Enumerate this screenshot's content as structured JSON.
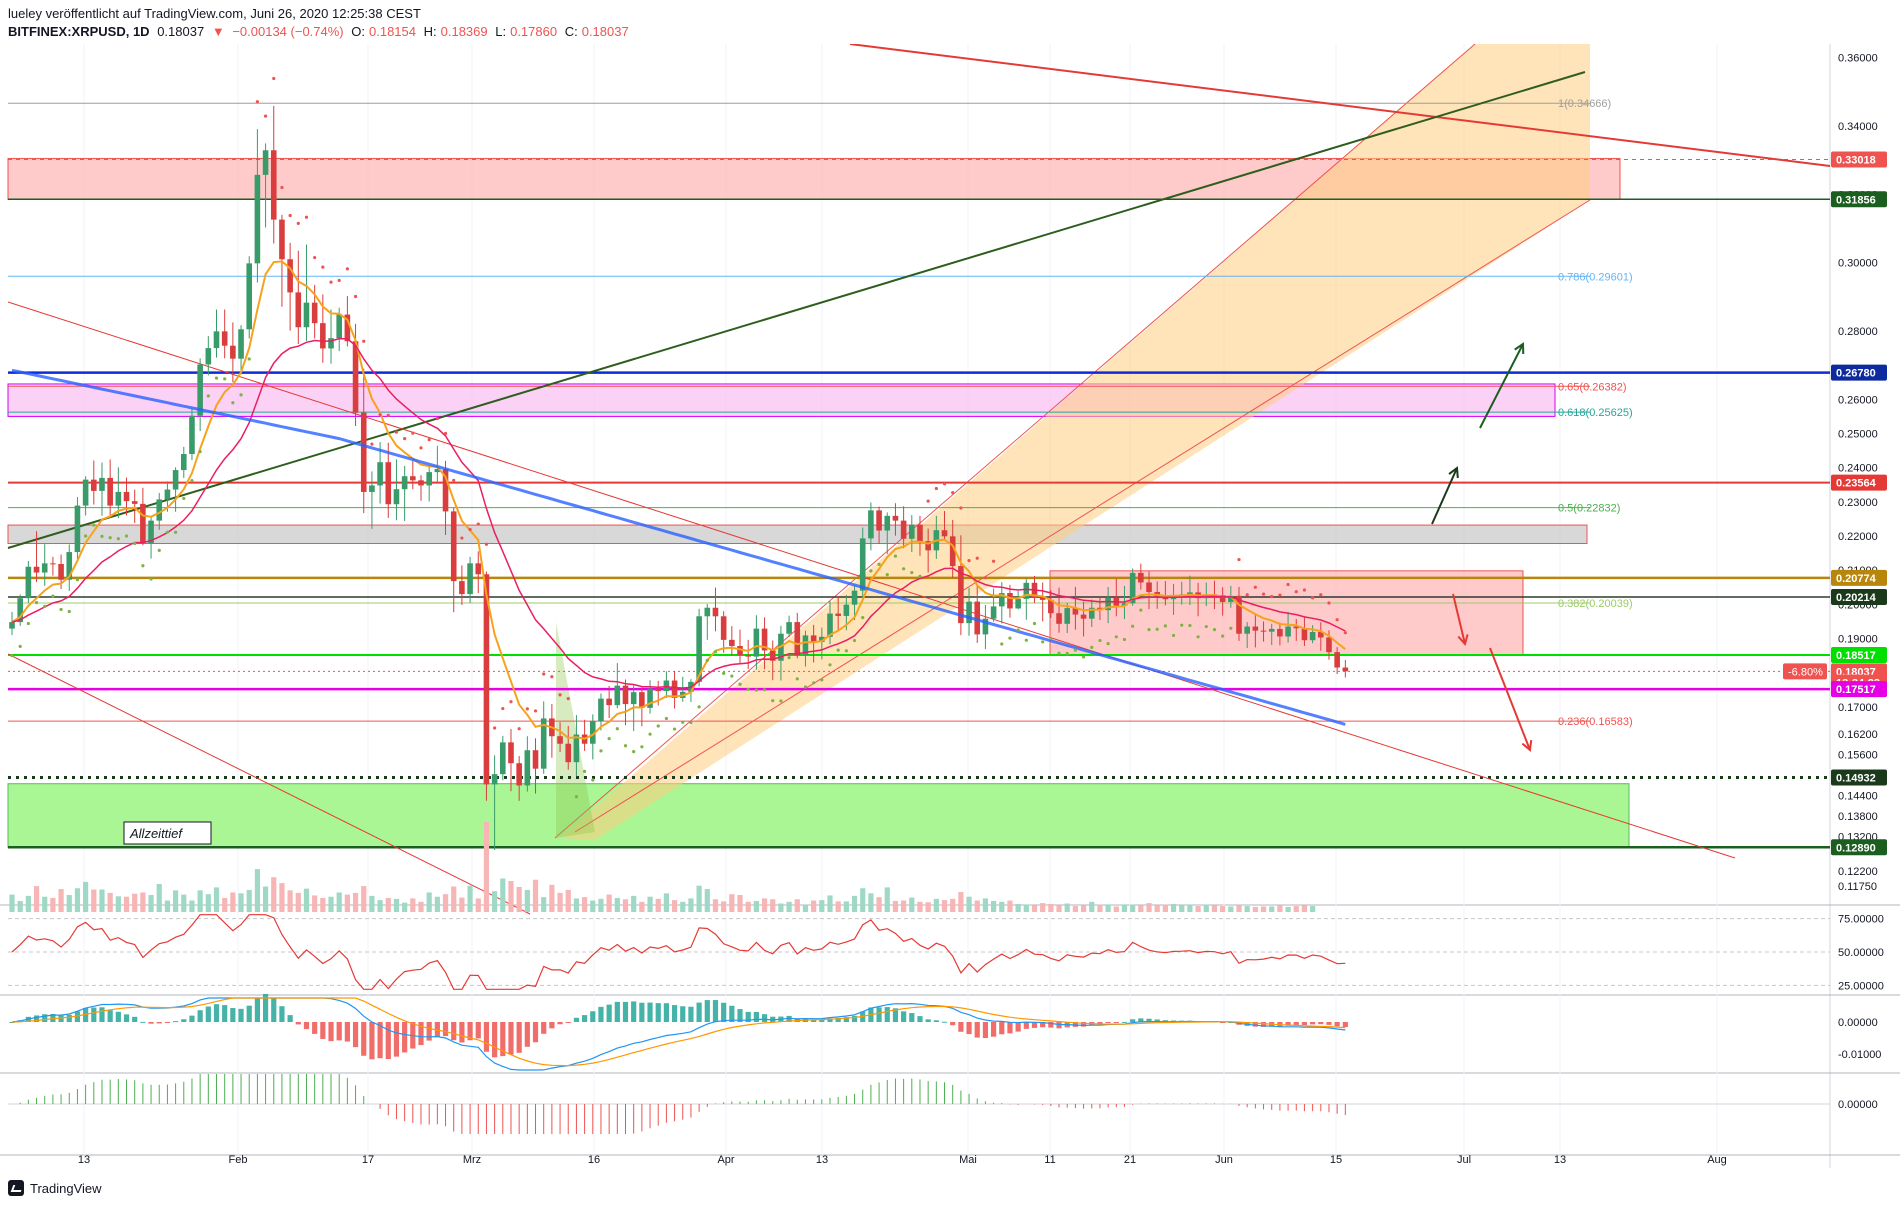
{
  "header": {
    "publisher": "lueley veröffentlicht auf TradingView.com, Juni 26, 2020 12:25:38 CEST",
    "symbol": "BITFINEX:XRPUSD, 1D",
    "last": "0.18037",
    "change": "−0.00134 (−0.74%)",
    "o_label": "O:",
    "o": "0.18154",
    "h_label": "H:",
    "h": "0.18369",
    "l_label": "L:",
    "l": "0.17860",
    "c_label": "C:",
    "c": "0.18037"
  },
  "footer": {
    "brand": "TradingView"
  },
  "colors": {
    "up": "#26a69a",
    "down": "#ef5350",
    "ma200": "#2962ff",
    "ema_fast": "#f7a21b",
    "ema_slow": "#e91e63",
    "channel_fill": "#ffcc80",
    "green_zone": "#a5f58f",
    "red_zone": "#ff9e9e",
    "pink_zone": "#f8b4f0",
    "gray_zone": "#c8c8c8"
  },
  "chart_data": {
    "type": "line",
    "title": "BITFINEX:XRPUSD, 1D",
    "ylim": [
      0.112,
      0.364
    ],
    "x_ticks": [
      "13",
      "Feb",
      "17",
      "Mrz",
      "16",
      "Apr",
      "13",
      "Mai",
      "11",
      "21",
      "Jun",
      "15",
      "Jul",
      "13",
      "Aug"
    ],
    "y_ticks": [
      "0.36000",
      "0.34000",
      "0.32000",
      "0.30000",
      "0.28000",
      "0.26000",
      "0.25000",
      "0.24000",
      "0.23000",
      "0.22000",
      "0.21000",
      "0.20000",
      "0.19000",
      "0.18000",
      "0.17000",
      "0.16200",
      "0.15600",
      "0.14400",
      "0.13800",
      "0.13200",
      "0.12800",
      "0.12200",
      "0.11750"
    ],
    "price_tags": [
      {
        "text": "0.33018",
        "value": 0.33018,
        "color": "#ef5350"
      },
      {
        "text": "0.31856",
        "value": 0.31856,
        "color": "#1b5e20"
      },
      {
        "text": "0.26780",
        "value": 0.2678,
        "color": "#0d2b9e"
      },
      {
        "text": "0.23564",
        "value": 0.23564,
        "color": "#e53935"
      },
      {
        "text": "0.20774",
        "value": 0.20774,
        "color": "#b8860b"
      },
      {
        "text": "0.20214",
        "value": 0.20214,
        "color": "#1b3a1b"
      },
      {
        "text": "0.18517",
        "value": 0.18517,
        "color": "#00e000"
      },
      {
        "text": "0.18037",
        "value": 0.18037,
        "color": "#ef5350"
      },
      {
        "text": "13:34:23",
        "value": 0.1771,
        "color": "#ef5350"
      },
      {
        "text": "0.17517",
        "value": 0.17517,
        "color": "#e600e6"
      },
      {
        "text": "0.14932",
        "value": 0.14932,
        "color": "#1b3a1b"
      },
      {
        "text": "0.12890",
        "value": 0.1289,
        "color": "#1b5e20"
      }
    ],
    "change_tag": "-6.80%",
    "fib_levels": [
      {
        "label": "1(0.34666)",
        "value": 0.34666,
        "color": "#9e9e9e"
      },
      {
        "label": "0.786(0.29601)",
        "value": 0.29601,
        "color": "#64b5f6"
      },
      {
        "label": "0.65(0.26382)",
        "value": 0.26382,
        "color": "#ef5350"
      },
      {
        "label": "0.618(0.25625)",
        "value": 0.25625,
        "color": "#26a69a"
      },
      {
        "label": "0.5(0.22832)",
        "value": 0.22832,
        "color": "#4caf50"
      },
      {
        "label": "0.382(0.20039)",
        "value": 0.20039,
        "color": "#9ccc65"
      },
      {
        "label": "0.236(0.16583)",
        "value": 0.16583,
        "color": "#ef5350"
      }
    ],
    "annotation": "Allzeittief",
    "candles": [
      [
        0.1929,
        0.1978,
        0.191,
        0.1948
      ],
      [
        0.1948,
        0.2029,
        0.1937,
        0.2018
      ],
      [
        0.2018,
        0.2127,
        0.2004,
        0.211
      ],
      [
        0.211,
        0.2214,
        0.2065,
        0.2093
      ],
      [
        0.2093,
        0.2176,
        0.2054,
        0.212
      ],
      [
        0.212,
        0.2139,
        0.2084,
        0.2118
      ],
      [
        0.2118,
        0.2146,
        0.2045,
        0.2072
      ],
      [
        0.2072,
        0.2175,
        0.2039,
        0.2153
      ],
      [
        0.2153,
        0.2314,
        0.2132,
        0.2289
      ],
      [
        0.2289,
        0.2375,
        0.226,
        0.2365
      ],
      [
        0.2365,
        0.2421,
        0.2292,
        0.2332
      ],
      [
        0.2332,
        0.2415,
        0.2259,
        0.237
      ],
      [
        0.237,
        0.2424,
        0.2255,
        0.2289
      ],
      [
        0.2289,
        0.2401,
        0.2252,
        0.2329
      ],
      [
        0.2329,
        0.2371,
        0.226,
        0.2302
      ],
      [
        0.2302,
        0.2336,
        0.2238,
        0.2294
      ],
      [
        0.2294,
        0.2341,
        0.2173,
        0.2179
      ],
      [
        0.2179,
        0.2256,
        0.2134,
        0.2245
      ],
      [
        0.2245,
        0.2326,
        0.2218,
        0.2307
      ],
      [
        0.2307,
        0.236,
        0.2271,
        0.2336
      ],
      [
        0.2336,
        0.2401,
        0.2271,
        0.2393
      ],
      [
        0.2393,
        0.2461,
        0.237,
        0.244
      ],
      [
        0.244,
        0.2574,
        0.2422,
        0.2552
      ],
      [
        0.2552,
        0.272,
        0.2507,
        0.2702
      ],
      [
        0.2702,
        0.2785,
        0.267,
        0.275
      ],
      [
        0.275,
        0.2863,
        0.2722,
        0.2799
      ],
      [
        0.2799,
        0.2863,
        0.272,
        0.2757
      ],
      [
        0.2757,
        0.2825,
        0.265,
        0.2719
      ],
      [
        0.2719,
        0.2817,
        0.2673,
        0.2805
      ],
      [
        0.2805,
        0.3019,
        0.2778,
        0.2998
      ],
      [
        0.2998,
        0.3391,
        0.2942,
        0.3257
      ],
      [
        0.3257,
        0.3349,
        0.3103,
        0.3329
      ],
      [
        0.3329,
        0.3459,
        0.3056,
        0.3126
      ],
      [
        0.3126,
        0.314,
        0.2871,
        0.301
      ],
      [
        0.301,
        0.3058,
        0.2801,
        0.2913
      ],
      [
        0.2913,
        0.3035,
        0.2762,
        0.2811
      ],
      [
        0.2811,
        0.3053,
        0.2771,
        0.2883
      ],
      [
        0.2883,
        0.2935,
        0.2778,
        0.2823
      ],
      [
        0.2823,
        0.2907,
        0.2707,
        0.2749
      ],
      [
        0.2749,
        0.2863,
        0.2704,
        0.2779
      ],
      [
        0.2779,
        0.2868,
        0.2741,
        0.2848
      ],
      [
        0.2848,
        0.2902,
        0.2755,
        0.277
      ],
      [
        0.277,
        0.2821,
        0.2522,
        0.2561
      ],
      [
        0.2561,
        0.269,
        0.2267,
        0.2329
      ],
      [
        0.2329,
        0.2389,
        0.2221,
        0.2348
      ],
      [
        0.2348,
        0.2475,
        0.2295,
        0.2416
      ],
      [
        0.2416,
        0.2473,
        0.2253,
        0.2293
      ],
      [
        0.2293,
        0.2424,
        0.2246,
        0.2337
      ],
      [
        0.2337,
        0.2405,
        0.2244,
        0.2375
      ],
      [
        0.2375,
        0.2421,
        0.2337,
        0.2363
      ],
      [
        0.2363,
        0.2378,
        0.2303,
        0.2348
      ],
      [
        0.2348,
        0.2402,
        0.2301,
        0.2387
      ],
      [
        0.2387,
        0.2464,
        0.2353,
        0.2396
      ],
      [
        0.2396,
        0.242,
        0.2203,
        0.2272
      ],
      [
        0.2272,
        0.2283,
        0.1977,
        0.2068
      ],
      [
        0.2068,
        0.2114,
        0.1998,
        0.203
      ],
      [
        0.203,
        0.2139,
        0.2004,
        0.212
      ],
      [
        0.212,
        0.2155,
        0.2033,
        0.2088
      ],
      [
        0.2088,
        0.2096,
        0.1425,
        0.1473
      ],
      [
        0.1473,
        0.1558,
        0.1281,
        0.1503
      ],
      [
        0.1503,
        0.1615,
        0.1485,
        0.1596
      ],
      [
        0.1596,
        0.1635,
        0.1453,
        0.1535
      ],
      [
        0.1535,
        0.1556,
        0.1425,
        0.147
      ],
      [
        0.147,
        0.1614,
        0.1452,
        0.1573
      ],
      [
        0.1573,
        0.1608,
        0.1446,
        0.1519
      ],
      [
        0.1519,
        0.1716,
        0.1504,
        0.1666
      ],
      [
        0.1666,
        0.1708,
        0.1551,
        0.1614
      ],
      [
        0.1614,
        0.1655,
        0.1568,
        0.1592
      ],
      [
        0.1592,
        0.1644,
        0.1516,
        0.1538
      ],
      [
        0.1538,
        0.1676,
        0.1497,
        0.1619
      ],
      [
        0.1619,
        0.1662,
        0.1571,
        0.1592
      ],
      [
        0.1592,
        0.1678,
        0.1546,
        0.1658
      ],
      [
        0.1658,
        0.1739,
        0.1631,
        0.1724
      ],
      [
        0.1724,
        0.1761,
        0.1667,
        0.1705
      ],
      [
        0.1705,
        0.1828,
        0.1696,
        0.1762
      ],
      [
        0.1762,
        0.178,
        0.1646,
        0.1708
      ],
      [
        0.1708,
        0.1764,
        0.1629,
        0.1743
      ],
      [
        0.1743,
        0.1756,
        0.1643,
        0.1697
      ],
      [
        0.1697,
        0.1778,
        0.168,
        0.1753
      ],
      [
        0.1753,
        0.1776,
        0.1704,
        0.1746
      ],
      [
        0.1746,
        0.1804,
        0.1726,
        0.1777
      ],
      [
        0.1777,
        0.1804,
        0.1695,
        0.1726
      ],
      [
        0.1726,
        0.1788,
        0.1715,
        0.1744
      ],
      [
        0.1744,
        0.1781,
        0.1714,
        0.1773
      ],
      [
        0.1773,
        0.1987,
        0.176,
        0.1965
      ],
      [
        0.1965,
        0.2001,
        0.1896,
        0.199
      ],
      [
        0.199,
        0.2049,
        0.1921,
        0.1965
      ],
      [
        0.1965,
        0.198,
        0.1858,
        0.1896
      ],
      [
        0.1896,
        0.1936,
        0.185,
        0.1878
      ],
      [
        0.1878,
        0.1926,
        0.1826,
        0.1851
      ],
      [
        0.1851,
        0.1896,
        0.1811,
        0.1847
      ],
      [
        0.1847,
        0.1968,
        0.1809,
        0.1929
      ],
      [
        0.1929,
        0.1962,
        0.181,
        0.1865
      ],
      [
        0.1865,
        0.1894,
        0.1778,
        0.1835
      ],
      [
        0.1835,
        0.1937,
        0.1777,
        0.1914
      ],
      [
        0.1914,
        0.1967,
        0.1904,
        0.1948
      ],
      [
        0.1948,
        0.1975,
        0.1842,
        0.1851
      ],
      [
        0.1851,
        0.1923,
        0.1818,
        0.1909
      ],
      [
        0.1909,
        0.194,
        0.183,
        0.189
      ],
      [
        0.189,
        0.1932,
        0.1839,
        0.1905
      ],
      [
        0.1905,
        0.2009,
        0.1883,
        0.1973
      ],
      [
        0.1973,
        0.2024,
        0.1926,
        0.1966
      ],
      [
        0.1966,
        0.2027,
        0.1924,
        0.1999
      ],
      [
        0.1999,
        0.2056,
        0.1954,
        0.204
      ],
      [
        0.204,
        0.2225,
        0.2021,
        0.2193
      ],
      [
        0.2193,
        0.2298,
        0.2158,
        0.2275
      ],
      [
        0.2275,
        0.2286,
        0.2177,
        0.2216
      ],
      [
        0.2216,
        0.2269,
        0.2147,
        0.2259
      ],
      [
        0.2259,
        0.2296,
        0.2201,
        0.2245
      ],
      [
        0.2245,
        0.2287,
        0.2164,
        0.2192
      ],
      [
        0.2192,
        0.2261,
        0.2153,
        0.2233
      ],
      [
        0.2233,
        0.2259,
        0.2142,
        0.2185
      ],
      [
        0.2185,
        0.2222,
        0.2093,
        0.2158
      ],
      [
        0.2158,
        0.2259,
        0.2133,
        0.2217
      ],
      [
        0.2217,
        0.2273,
        0.2186,
        0.2199
      ],
      [
        0.2199,
        0.2247,
        0.2077,
        0.2112
      ],
      [
        0.2112,
        0.2202,
        0.191,
        0.1945
      ],
      [
        0.1945,
        0.2048,
        0.1908,
        0.2008
      ],
      [
        0.2008,
        0.2055,
        0.1887,
        0.1912
      ],
      [
        0.1912,
        0.1998,
        0.1869,
        0.1958
      ],
      [
        0.1958,
        0.2046,
        0.1949,
        0.1994
      ],
      [
        0.1994,
        0.2065,
        0.1944,
        0.2033
      ],
      [
        0.2033,
        0.2057,
        0.1961,
        0.1988
      ],
      [
        0.1988,
        0.2039,
        0.1985,
        0.2016
      ],
      [
        0.2016,
        0.2074,
        0.1955,
        0.2063
      ],
      [
        0.2063,
        0.2083,
        0.2004,
        0.2021
      ],
      [
        0.2021,
        0.2064,
        0.195,
        0.2013
      ],
      [
        0.2013,
        0.2041,
        0.196,
        0.1974
      ],
      [
        0.1974,
        0.2049,
        0.1917,
        0.1943
      ],
      [
        0.1943,
        0.2005,
        0.1916,
        0.1989
      ],
      [
        0.1989,
        0.2051,
        0.1926,
        0.197
      ],
      [
        0.197,
        0.2008,
        0.1906,
        0.1958
      ],
      [
        0.1958,
        0.2014,
        0.1934,
        0.199
      ],
      [
        0.199,
        0.2021,
        0.1954,
        0.1983
      ],
      [
        0.1983,
        0.2051,
        0.1945,
        0.2019
      ],
      [
        0.2019,
        0.2075,
        0.1965,
        0.1996
      ],
      [
        0.1996,
        0.2054,
        0.1957,
        0.2003
      ],
      [
        0.2003,
        0.2105,
        0.1996,
        0.2092
      ],
      [
        0.2092,
        0.2119,
        0.2043,
        0.2064
      ],
      [
        0.2064,
        0.2096,
        0.1986,
        0.2036
      ],
      [
        0.2036,
        0.2067,
        0.1987,
        0.2022
      ],
      [
        0.2022,
        0.2068,
        0.1997,
        0.2015
      ],
      [
        0.2015,
        0.206,
        0.1969,
        0.2026
      ],
      [
        0.2026,
        0.2066,
        0.1999,
        0.2029
      ],
      [
        0.2029,
        0.2084,
        0.1998,
        0.2035
      ],
      [
        0.2035,
        0.2063,
        0.1965,
        0.2018
      ],
      [
        0.2018,
        0.2064,
        0.1995,
        0.2029
      ],
      [
        0.2029,
        0.2069,
        0.1986,
        0.2027
      ],
      [
        0.2027,
        0.205,
        0.1967,
        0.2007
      ],
      [
        0.2007,
        0.2054,
        0.199,
        0.2025
      ],
      [
        0.2025,
        0.2051,
        0.1893,
        0.1914
      ],
      [
        0.1914,
        0.1948,
        0.1872,
        0.1935
      ],
      [
        0.1935,
        0.197,
        0.1874,
        0.1923
      ],
      [
        0.1923,
        0.195,
        0.1891,
        0.192
      ],
      [
        0.192,
        0.1943,
        0.1881,
        0.1928
      ],
      [
        0.1928,
        0.1947,
        0.188,
        0.1906
      ],
      [
        0.1906,
        0.1978,
        0.1888,
        0.1935
      ],
      [
        0.1935,
        0.1957,
        0.1893,
        0.193
      ],
      [
        0.193,
        0.1962,
        0.1878,
        0.1895
      ],
      [
        0.1895,
        0.1939,
        0.1886,
        0.1919
      ],
      [
        0.1919,
        0.1948,
        0.1864,
        0.1903
      ],
      [
        0.1903,
        0.1924,
        0.1838,
        0.186
      ],
      [
        0.186,
        0.1875,
        0.1796,
        0.1815
      ],
      [
        0.1815,
        0.1837,
        0.1786,
        0.1804
      ]
    ],
    "volume": [
      4.1,
      2.6,
      3.8,
      6.1,
      3.6,
      3.3,
      5.4,
      4.0,
      5.6,
      7.1,
      5.3,
      5.3,
      4.5,
      3.7,
      3.6,
      4.3,
      4.6,
      4.0,
      6.6,
      2.7,
      5.1,
      4.1,
      2.7,
      5.1,
      4.2,
      5.8,
      3.3,
      4.6,
      4.4,
      5.2,
      10.1,
      6.0,
      8.2,
      6.8,
      5.1,
      4.5,
      5.5,
      3.9,
      3.3,
      3.6,
      4.6,
      4.1,
      4.5,
      6.1,
      3.8,
      2.8,
      3.3,
      3.1,
      2.2,
      3.2,
      2.4,
      4.6,
      3.6,
      4.2,
      6.0,
      3.4,
      6.2,
      3.2,
      21.2,
      4.9,
      7.9,
      7.3,
      5.9,
      5.2,
      7.6,
      3.5,
      6.4,
      4.5,
      5.2,
      3.2,
      3.5,
      2.7,
      3.1,
      4.1,
      3.3,
      3.0,
      3.8,
      2.4,
      3.6,
      3.1,
      4.4,
      2.8,
      2.4,
      3.2,
      6.2,
      5.4,
      3.0,
      2.5,
      4.2,
      4.0,
      2.4,
      2.6,
      3.2,
      3.0,
      2.0,
      2.4,
      3.0,
      1.8,
      2.7,
      2.8,
      3.9,
      2.5,
      2.5,
      3.8,
      5.6,
      4.4,
      3.5,
      5.8,
      2.6,
      2.7,
      3.4,
      2.4,
      2.3,
      3.1,
      2.8,
      3.1,
      4.7,
      3.6,
      2.7,
      3.2,
      2.6,
      2.4,
      2.7,
      1.9,
      1.8,
      1.6,
      2.1,
      1.9,
      1.5,
      2.0,
      1.4,
      1.6,
      2.4,
      1.7,
      1.8,
      1.3,
      1.8,
      1.7,
      1.6,
      2.1,
      1.5,
      1.7,
      1.9,
      1.6,
      1.8,
      1.4,
      1.7,
      1.6,
      1.4,
      1.3,
      1.5,
      1.4,
      1.2,
      1.3,
      1.3,
      1.5,
      1.2,
      1.4,
      1.6,
      1.4
    ],
    "rsi_ticks": [
      "75.00000",
      "50.00000",
      "25.00000"
    ],
    "macd_ticks": [
      "0.00000",
      "-0.01000"
    ],
    "osc_ticks": [
      "0.00000"
    ]
  }
}
